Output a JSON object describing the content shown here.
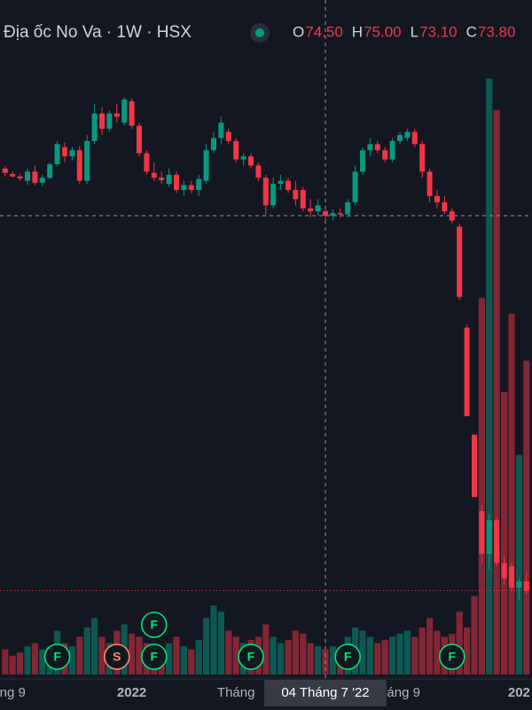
{
  "chart_data": {
    "type": "candlestick",
    "title": "Địa ốc No Va · 1W · HSX",
    "header": [
      {
        "label": "O",
        "value": 74.5,
        "value_label": "74.50"
      },
      {
        "label": "H",
        "value": 75.0,
        "value_label": "75.00"
      },
      {
        "label": "L",
        "value": 73.1,
        "value_label": "73.10"
      },
      {
        "label": "C",
        "value": 73.8,
        "value_label": "73.80"
      }
    ],
    "up_color": "#089981",
    "down_color": "#f23645",
    "open": [
      81.5,
      80.6,
      80.2,
      79.5,
      81.0,
      79.2,
      80.0,
      82.2,
      85.0,
      83.5,
      84.5,
      79.5,
      86.0,
      90.5,
      88.0,
      90.5,
      89.0,
      92.5,
      88.5,
      84.0,
      80.8,
      80.0,
      79.0,
      80.5,
      78.0,
      78.8,
      78.0,
      79.5,
      84.5,
      86.5,
      87.5,
      86.0,
      83.0,
      83.5,
      82.0,
      80.0,
      75.5,
      79.0,
      79.5,
      78.0,
      78.0,
      75.0,
      74.5,
      74.5,
      73.8,
      74.2,
      74.0,
      76.0,
      81.0,
      84.5,
      85.5,
      84.5,
      83.0,
      86.0,
      86.5,
      87.5,
      85.5,
      81.0,
      77.0,
      76.0,
      74.5,
      72.0,
      55.5,
      38.0,
      25.5,
      18.5,
      24.0,
      17.0,
      16.5,
      13.0,
      14.0
    ],
    "high": [
      81.9,
      81.0,
      80.6,
      81.5,
      82.0,
      80.5,
      82.5,
      86.0,
      85.8,
      85.0,
      85.2,
      87.0,
      92.0,
      91.5,
      91.0,
      92.0,
      93.2,
      93.0,
      89.0,
      84.5,
      82.5,
      81.0,
      81.5,
      81.0,
      79.5,
      79.5,
      80.5,
      85.5,
      87.5,
      90.0,
      88.0,
      86.5,
      84.0,
      84.0,
      82.5,
      80.5,
      80.0,
      80.5,
      80.0,
      79.5,
      78.5,
      76.5,
      76.5,
      75.0,
      74.8,
      75.0,
      76.5,
      82.0,
      85.0,
      86.5,
      86.0,
      85.0,
      86.5,
      87.5,
      88.0,
      88.0,
      86.0,
      81.5,
      78.0,
      77.0,
      75.0,
      72.5,
      56.0,
      38.0,
      26.5,
      25.0,
      24.5,
      18.0,
      17.0,
      14.5,
      15.5
    ],
    "low": [
      80.2,
      80.0,
      79.5,
      78.8,
      78.8,
      78.6,
      79.8,
      81.8,
      82.5,
      82.8,
      79.0,
      79.0,
      85.5,
      87.0,
      87.5,
      89.0,
      88.5,
      88.0,
      83.5,
      80.5,
      79.5,
      79.0,
      78.5,
      77.5,
      77.0,
      77.5,
      77.0,
      79.0,
      84.0,
      85.5,
      85.5,
      82.5,
      82.0,
      81.5,
      79.5,
      74.0,
      75.0,
      78.0,
      77.5,
      75.5,
      74.5,
      73.5,
      73.8,
      73.1,
      73.0,
      73.5,
      73.5,
      75.5,
      80.5,
      83.5,
      84.0,
      82.5,
      82.5,
      85.5,
      86.0,
      85.0,
      80.0,
      76.0,
      75.0,
      74.0,
      72.5,
      60.0,
      41.0,
      27.8,
      17.0,
      16.0,
      16.5,
      13.5,
      12.5,
      11.0,
      12.0
    ],
    "close": [
      80.8,
      80.2,
      79.9,
      81.0,
      79.2,
      80.0,
      82.2,
      85.5,
      83.5,
      84.5,
      79.5,
      86.0,
      90.5,
      88.0,
      90.5,
      90.0,
      92.8,
      88.5,
      84.0,
      81.0,
      80.0,
      79.6,
      80.5,
      78.0,
      78.8,
      78.0,
      79.8,
      84.5,
      86.5,
      89.0,
      86.0,
      83.0,
      83.5,
      82.0,
      80.0,
      75.5,
      79.0,
      79.5,
      78.0,
      76.5,
      75.0,
      74.5,
      75.5,
      73.8,
      74.2,
      74.0,
      76.0,
      81.0,
      84.5,
      85.5,
      84.5,
      83.0,
      86.0,
      87.0,
      87.5,
      85.5,
      81.0,
      77.0,
      76.0,
      74.5,
      73.0,
      60.5,
      41.0,
      27.8,
      18.5,
      24.0,
      17.0,
      14.5,
      13.0,
      14.0,
      12.5
    ],
    "volume": [
      8,
      6,
      7,
      9,
      10,
      8,
      9,
      14,
      10,
      9,
      12,
      15,
      18,
      12,
      10,
      14,
      16,
      13,
      12,
      10,
      9,
      8,
      10,
      12,
      9,
      8,
      11,
      18,
      22,
      20,
      14,
      12,
      10,
      11,
      12,
      16,
      12,
      10,
      11,
      14,
      13,
      10,
      9,
      8,
      9,
      8,
      12,
      15,
      14,
      12,
      10,
      11,
      12,
      13,
      14,
      12,
      15,
      18,
      14,
      12,
      13,
      20,
      15,
      25,
      120,
      190,
      180,
      90,
      115,
      70,
      100
    ],
    "xlim": [
      -0.69,
      70.74
    ],
    "ylim": [
      -2.67,
      109.06
    ],
    "vlim": [
      0,
      215
    ],
    "xticks": [
      {
        "value": 1,
        "label": "ng 9"
      },
      {
        "value": 17,
        "label": "2022"
      },
      {
        "value": 31,
        "label": "Tháng"
      },
      {
        "value": 53.5,
        "label": "áng 9"
      },
      {
        "value": 69,
        "label": "202"
      }
    ],
    "crosshair": {
      "index": 43,
      "label": "04 Tháng 7 '22"
    },
    "events": [
      {
        "index": 7,
        "label": "F",
        "row": 0
      },
      {
        "index": 15,
        "label": "S",
        "row": 0
      },
      {
        "index": 20,
        "label": "F",
        "row": 0
      },
      {
        "index": 20,
        "label": "F",
        "row": 1
      },
      {
        "index": 33,
        "label": "F",
        "row": 0
      },
      {
        "index": 46,
        "label": "F",
        "row": 0
      },
      {
        "index": 60,
        "label": "F",
        "row": 0
      }
    ]
  }
}
